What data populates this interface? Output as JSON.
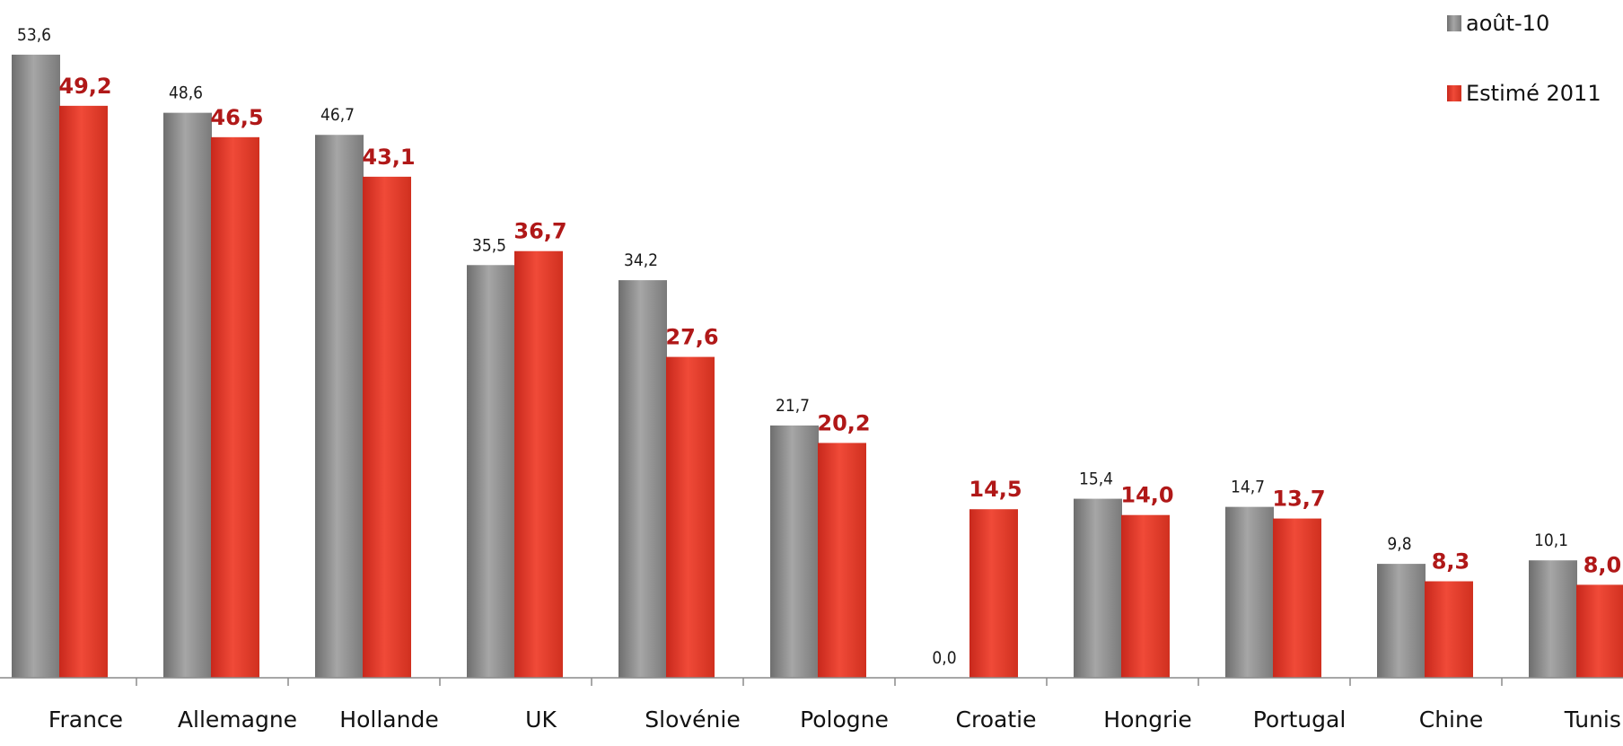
{
  "chart_data": {
    "type": "bar",
    "title": "",
    "xlabel": "",
    "ylabel": "",
    "ylim": [
      0,
      56
    ],
    "grid": false,
    "legend_position": "top-right",
    "categories": [
      "France",
      "Allemagne",
      "Hollande",
      "UK",
      "Slovénie",
      "Pologne",
      "Croatie",
      "Hongrie",
      "Portugal",
      "Chine",
      "Tunisie"
    ],
    "series": [
      {
        "name": "août-10",
        "color": "#8c8c8c",
        "values": [
          53.6,
          48.6,
          46.7,
          35.5,
          34.2,
          21.7,
          0.0,
          15.4,
          14.7,
          9.8,
          10.1
        ],
        "labels": [
          "53,6",
          "48,6",
          "46,7",
          "35,5",
          "34,2",
          "21,7",
          "0,0",
          "15,4",
          "14,7",
          "9,8",
          "10,1"
        ]
      },
      {
        "name": "Estimé 2011",
        "color": "#e8392a",
        "values": [
          49.2,
          46.5,
          43.1,
          36.7,
          27.6,
          20.2,
          14.5,
          14.0,
          13.7,
          8.3,
          8.0
        ],
        "labels": [
          "49,2",
          "46,5",
          "43,1",
          "36,7",
          "27,6",
          "20,2",
          "14,5",
          "14,0",
          "13,7",
          "8,3",
          "8,0"
        ]
      }
    ]
  }
}
